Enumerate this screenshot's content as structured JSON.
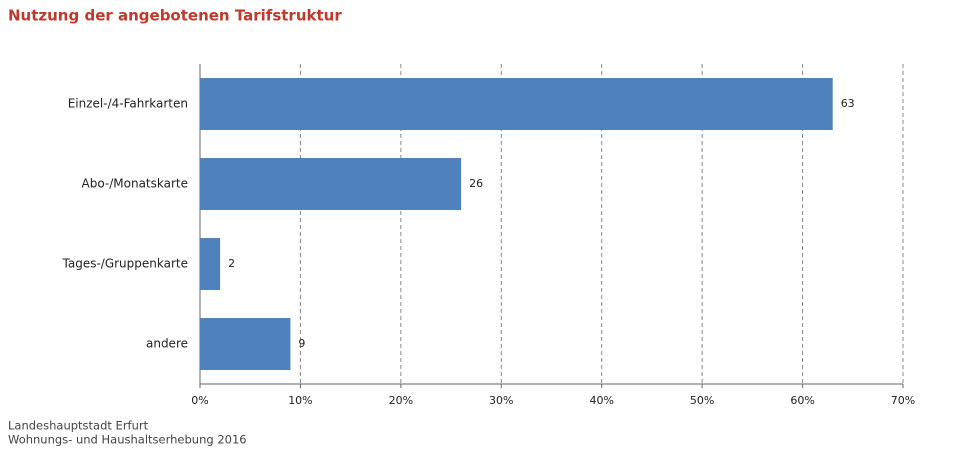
{
  "chart_data": {
    "type": "barh",
    "title": "Nutzung der angebotenen Tarifstruktur",
    "categories": [
      "Einzel-/4-Fahrkarten",
      "Abo-/Monatskarte",
      "Tages-/Gruppenkarte",
      "andere"
    ],
    "values": [
      63,
      26,
      2,
      9
    ],
    "color": "#4f81bd",
    "xlim": [
      0,
      70
    ],
    "xticks": [
      {
        "value": 0,
        "label": "0%"
      },
      {
        "value": 10,
        "label": "10%"
      },
      {
        "value": 20,
        "label": "20%"
      },
      {
        "value": 30,
        "label": "30%"
      },
      {
        "value": 40,
        "label": "40%"
      },
      {
        "value": 50,
        "label": "50%"
      },
      {
        "value": 60,
        "label": "60%"
      },
      {
        "value": 70,
        "label": "70%"
      }
    ],
    "grid": true,
    "source": [
      "Landeshauptstadt Erfurt",
      "Wohnungs- und Haushaltserhebung 2016"
    ]
  }
}
